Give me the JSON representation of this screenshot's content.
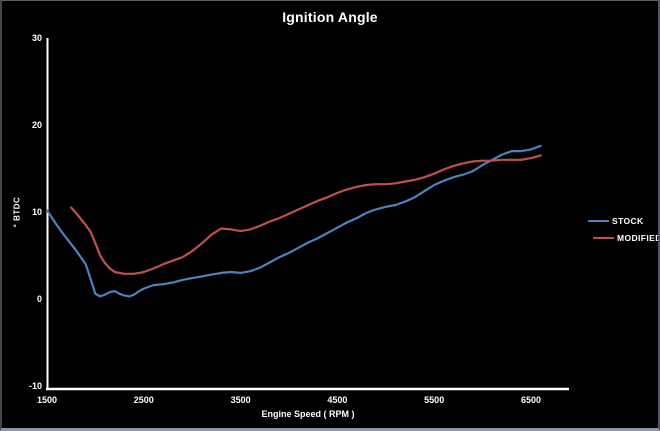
{
  "chart_data": {
    "type": "line",
    "title": "Ignition Angle",
    "xlabel": "Engine Speed ( RPM )",
    "ylabel": "° BTDC",
    "x_ticks": [
      1500,
      2500,
      3500,
      4500,
      5500,
      6500
    ],
    "y_ticks": [
      30,
      20,
      10,
      0,
      -10
    ],
    "xlim": [
      1500,
      6900
    ],
    "ylim": [
      -10,
      30
    ],
    "grid": false,
    "legend_position": "right",
    "background_color": "#000000",
    "axis_color": "#ffffff",
    "text_color": "#ffffff",
    "series": [
      {
        "name": "STOCK",
        "color": "#4f81bd",
        "points": [
          [
            1500,
            10.2
          ],
          [
            1600,
            8.5
          ],
          [
            1700,
            7.0
          ],
          [
            1800,
            5.6
          ],
          [
            1900,
            4.0
          ],
          [
            1950,
            2.3
          ],
          [
            2000,
            0.6
          ],
          [
            2050,
            0.3
          ],
          [
            2100,
            0.5
          ],
          [
            2150,
            0.8
          ],
          [
            2200,
            0.9
          ],
          [
            2250,
            0.6
          ],
          [
            2300,
            0.4
          ],
          [
            2350,
            0.3
          ],
          [
            2400,
            0.5
          ],
          [
            2450,
            0.9
          ],
          [
            2500,
            1.2
          ],
          [
            2600,
            1.6
          ],
          [
            2700,
            1.7
          ],
          [
            2800,
            1.9
          ],
          [
            2900,
            2.2
          ],
          [
            3000,
            2.4
          ],
          [
            3100,
            2.6
          ],
          [
            3200,
            2.8
          ],
          [
            3300,
            3.0
          ],
          [
            3400,
            3.1
          ],
          [
            3500,
            3.0
          ],
          [
            3600,
            3.2
          ],
          [
            3700,
            3.6
          ],
          [
            3800,
            4.2
          ],
          [
            3900,
            4.8
          ],
          [
            4000,
            5.3
          ],
          [
            4100,
            5.9
          ],
          [
            4200,
            6.5
          ],
          [
            4300,
            7.0
          ],
          [
            4400,
            7.6
          ],
          [
            4500,
            8.2
          ],
          [
            4600,
            8.8
          ],
          [
            4700,
            9.3
          ],
          [
            4800,
            9.9
          ],
          [
            4900,
            10.3
          ],
          [
            5000,
            10.6
          ],
          [
            5100,
            10.8
          ],
          [
            5200,
            11.2
          ],
          [
            5300,
            11.7
          ],
          [
            5400,
            12.4
          ],
          [
            5500,
            13.1
          ],
          [
            5600,
            13.6
          ],
          [
            5700,
            14.0
          ],
          [
            5800,
            14.3
          ],
          [
            5900,
            14.7
          ],
          [
            6000,
            15.4
          ],
          [
            6100,
            16.0
          ],
          [
            6200,
            16.6
          ],
          [
            6300,
            17.0
          ],
          [
            6400,
            17.0
          ],
          [
            6500,
            17.2
          ],
          [
            6600,
            17.6
          ]
        ]
      },
      {
        "name": "MODIFIED",
        "color": "#c0504d",
        "points": [
          [
            1750,
            10.5
          ],
          [
            1800,
            9.9
          ],
          [
            1850,
            9.2
          ],
          [
            1900,
            8.5
          ],
          [
            1950,
            7.7
          ],
          [
            2000,
            6.4
          ],
          [
            2050,
            5.0
          ],
          [
            2100,
            4.1
          ],
          [
            2150,
            3.5
          ],
          [
            2200,
            3.1
          ],
          [
            2250,
            3.0
          ],
          [
            2300,
            2.9
          ],
          [
            2350,
            2.9
          ],
          [
            2400,
            2.9
          ],
          [
            2450,
            3.0
          ],
          [
            2500,
            3.1
          ],
          [
            2600,
            3.5
          ],
          [
            2700,
            4.0
          ],
          [
            2800,
            4.4
          ],
          [
            2900,
            4.8
          ],
          [
            3000,
            5.5
          ],
          [
            3100,
            6.4
          ],
          [
            3200,
            7.4
          ],
          [
            3300,
            8.1
          ],
          [
            3400,
            8.0
          ],
          [
            3500,
            7.8
          ],
          [
            3600,
            8.0
          ],
          [
            3700,
            8.4
          ],
          [
            3800,
            8.9
          ],
          [
            3900,
            9.3
          ],
          [
            4000,
            9.8
          ],
          [
            4100,
            10.3
          ],
          [
            4200,
            10.8
          ],
          [
            4300,
            11.3
          ],
          [
            4400,
            11.7
          ],
          [
            4500,
            12.2
          ],
          [
            4600,
            12.6
          ],
          [
            4700,
            12.9
          ],
          [
            4800,
            13.1
          ],
          [
            4900,
            13.2
          ],
          [
            5000,
            13.2
          ],
          [
            5100,
            13.3
          ],
          [
            5200,
            13.5
          ],
          [
            5300,
            13.7
          ],
          [
            5400,
            14.0
          ],
          [
            5500,
            14.4
          ],
          [
            5600,
            14.9
          ],
          [
            5700,
            15.3
          ],
          [
            5800,
            15.6
          ],
          [
            5900,
            15.8
          ],
          [
            6000,
            15.9
          ],
          [
            6100,
            15.9
          ],
          [
            6200,
            16.0
          ],
          [
            6300,
            16.0
          ],
          [
            6400,
            16.0
          ],
          [
            6500,
            16.2
          ],
          [
            6600,
            16.5
          ]
        ]
      }
    ]
  }
}
